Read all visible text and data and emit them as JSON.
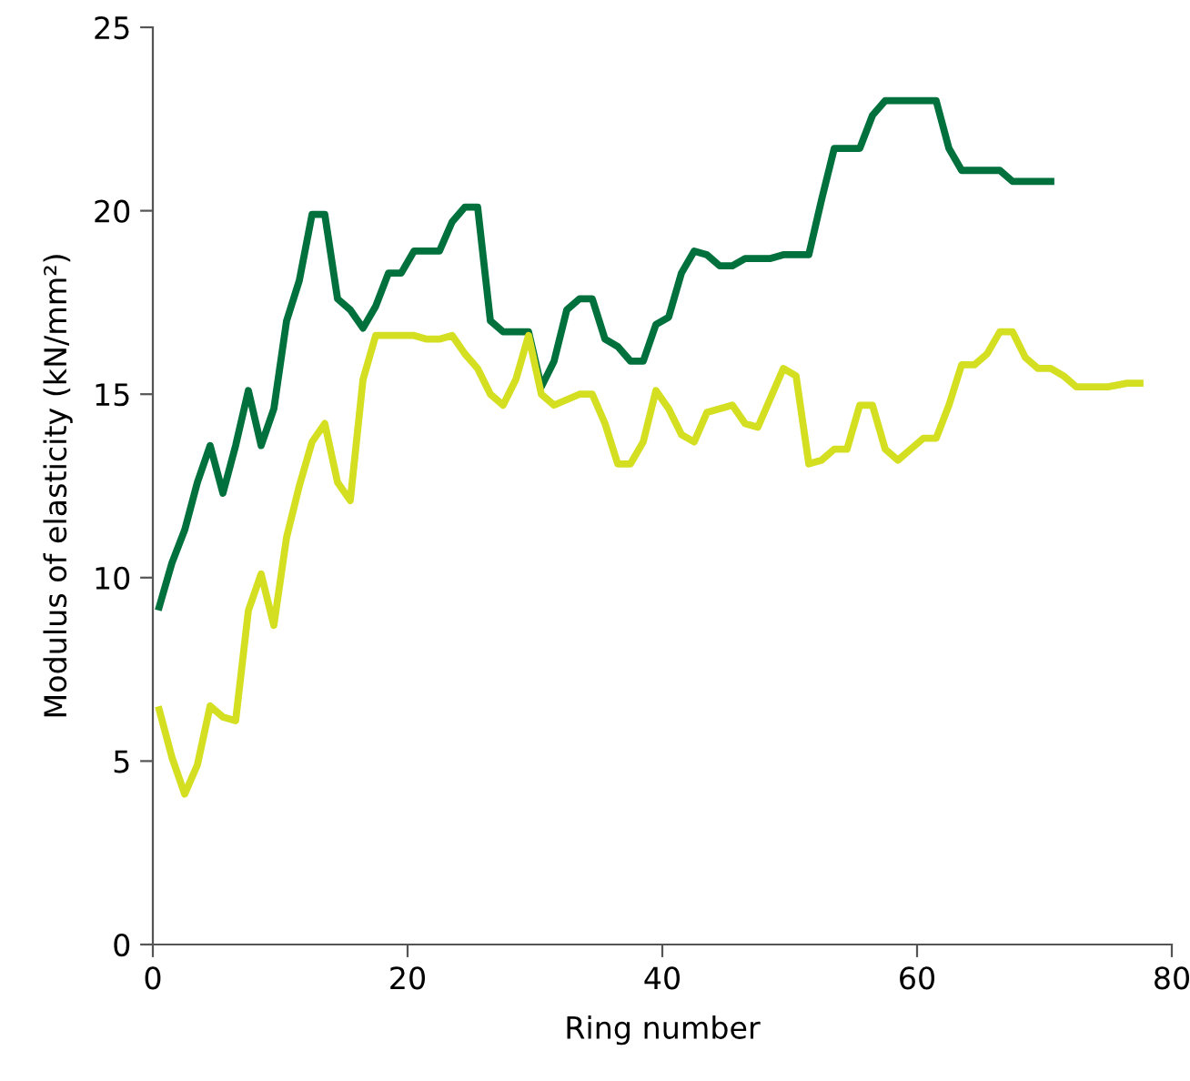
{
  "chart_data": {
    "type": "line",
    "xlabel": "Ring number",
    "ylabel": "Modulus of elasticity (kN/mm²)",
    "xlim": [
      0,
      80
    ],
    "xticks": [
      0,
      20,
      40,
      60,
      80
    ],
    "ylim": [
      0,
      25
    ],
    "yticks": [
      0,
      5,
      10,
      15,
      20,
      25
    ],
    "grid": false,
    "marker": "none",
    "line_style": "solid",
    "series": [
      {
        "color": "#00703c",
        "x": [
          0.5,
          1.5,
          2.5,
          3.5,
          4.5,
          5.5,
          6.5,
          7.5,
          8.5,
          9.5,
          10.5,
          11.5,
          12.5,
          13.5,
          14.5,
          15.5,
          16.5,
          17.5,
          18.5,
          19.5,
          20.5,
          22.5,
          23.5,
          24.5,
          25.5,
          26.5,
          27.5,
          29.5,
          30.5,
          31.5,
          32.5,
          33.5,
          34.5,
          35.5,
          36.5,
          37.5,
          38.5,
          39.5,
          40.5,
          41.5,
          42.5,
          43.5,
          44.5,
          45.5,
          46.5,
          48.5,
          49.5,
          51.5,
          52.5,
          53.5,
          55.5,
          56.5,
          57.5,
          61.5,
          62.5,
          63.5,
          66.5,
          67.5,
          70.5
        ],
        "values": [
          9.2,
          10.4,
          11.3,
          12.6,
          13.6,
          12.3,
          13.6,
          15.1,
          13.6,
          14.6,
          17,
          18.1,
          19.9,
          19.9,
          17.6,
          17.3,
          16.8,
          17.4,
          18.3,
          18.3,
          18.9,
          18.9,
          19.7,
          20.1,
          20.1,
          17,
          16.7,
          16.7,
          15.2,
          15.9,
          17.3,
          17.6,
          17.6,
          16.5,
          16.3,
          15.9,
          15.9,
          16.9,
          17.1,
          18.3,
          18.9,
          18.8,
          18.5,
          18.5,
          18.7,
          18.7,
          18.8,
          18.8,
          20.3,
          21.7,
          21.7,
          22.6,
          23,
          23,
          21.7,
          21.1,
          21.1,
          20.8,
          20.8
        ]
      },
      {
        "color": "#d4df22",
        "x": [
          0.5,
          1.5,
          2.5,
          3.5,
          4.5,
          5.5,
          6.5,
          7.5,
          8.5,
          9.5,
          10.5,
          11.5,
          12.5,
          13.5,
          14.5,
          15.5,
          16.5,
          17.5,
          20.5,
          21.5,
          22.5,
          23.5,
          24.5,
          25.5,
          26.5,
          27.5,
          28.5,
          29.5,
          30.5,
          31.5,
          33.5,
          34.5,
          35.5,
          36.5,
          37.5,
          38.5,
          39.5,
          40.5,
          41.5,
          42.5,
          43.5,
          44.5,
          45.5,
          46.5,
          47.5,
          48.5,
          49.5,
          50.5,
          51.5,
          52.5,
          53.5,
          54.5,
          55.5,
          56.5,
          57.5,
          58.5,
          59.5,
          60.5,
          61.5,
          62.5,
          63.5,
          64.5,
          65.5,
          66.5,
          67.5,
          68.5,
          69.5,
          70.5,
          71.5,
          72.5,
          75,
          76.5,
          77.5
        ],
        "values": [
          6.4,
          5.1,
          4.1,
          4.9,
          6.5,
          6.2,
          6.1,
          9.1,
          10.1,
          8.7,
          11.1,
          12.5,
          13.7,
          14.2,
          12.6,
          12.1,
          15.4,
          16.6,
          16.6,
          16.5,
          16.5,
          16.6,
          16.1,
          15.7,
          15,
          14.7,
          15.4,
          16.6,
          15,
          14.7,
          15,
          15,
          14.2,
          13.1,
          13.1,
          13.7,
          15.1,
          14.6,
          13.9,
          13.7,
          14.5,
          14.6,
          14.7,
          14.2,
          14.1,
          14.9,
          15.7,
          15.5,
          13.1,
          13.2,
          13.5,
          13.5,
          14.7,
          14.7,
          13.5,
          13.2,
          13.5,
          13.8,
          13.8,
          14.7,
          15.8,
          15.8,
          16.1,
          16.7,
          16.7,
          16,
          15.7,
          15.7,
          15.5,
          15.2,
          15.2,
          15.3,
          15.3
        ]
      }
    ]
  }
}
